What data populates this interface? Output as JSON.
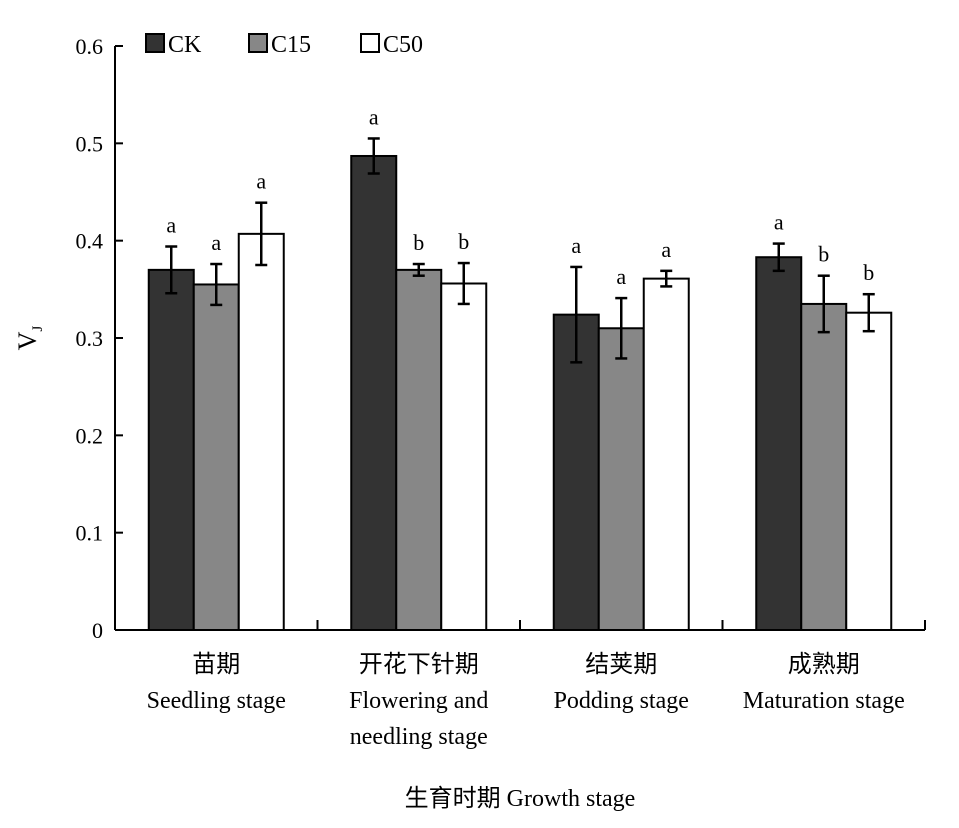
{
  "chart_data": {
    "type": "bar",
    "title": "",
    "xlabel": "生育时期 Growth stage",
    "ylabel": "V",
    "ylabel_sub": "J",
    "ylim": [
      0,
      0.6
    ],
    "yticks": [
      "0",
      "0.1",
      "0.2",
      "0.3",
      "0.4",
      "0.5",
      "0.6"
    ],
    "grid": false,
    "legend_position": "top-left",
    "categories": [
      [
        "苗期",
        "Seedling stage"
      ],
      [
        "开花下针期",
        "Flowering and",
        "needling stage"
      ],
      [
        "结荚期",
        "Podding stage"
      ],
      [
        "成熟期",
        "Maturation stage"
      ]
    ],
    "series": [
      {
        "name": "CK",
        "color": "#333333",
        "values": [
          0.37,
          0.487,
          0.324,
          0.383
        ],
        "errors": [
          0.024,
          0.018,
          0.049,
          0.014
        ],
        "labels": [
          "a",
          "a",
          "a",
          "a"
        ]
      },
      {
        "name": "C15",
        "color": "#878787",
        "values": [
          0.355,
          0.37,
          0.31,
          0.335
        ],
        "errors": [
          0.021,
          0.006,
          0.031,
          0.029
        ],
        "labels": [
          "a",
          "b",
          "a",
          "b"
        ]
      },
      {
        "name": "C50",
        "color": "#ffffff",
        "values": [
          0.407,
          0.356,
          0.361,
          0.326
        ],
        "errors": [
          0.032,
          0.021,
          0.008,
          0.019
        ],
        "labels": [
          "a",
          "b",
          "a",
          "b"
        ]
      }
    ]
  }
}
